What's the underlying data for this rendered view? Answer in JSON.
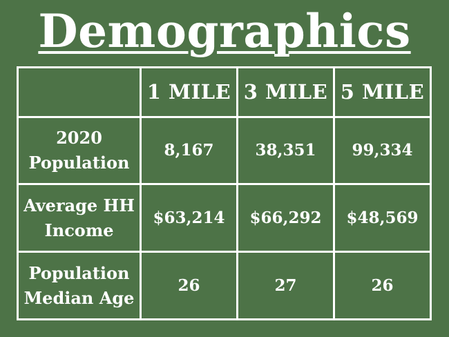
{
  "title": "Demographics",
  "table": {
    "columns": [
      "",
      "1 MILE",
      "3 MILE",
      "5 MILE"
    ],
    "rows": [
      {
        "label_line1": "2020",
        "label_line2": "Population",
        "values": [
          "8,167",
          "38,351",
          "99,334"
        ]
      },
      {
        "label_line1": "Average HH",
        "label_line2": "Income",
        "values": [
          "$63,214",
          "$66,292",
          "$48,569"
        ]
      },
      {
        "label_line1": "Population",
        "label_line2": "Median Age",
        "values": [
          "26",
          "27",
          "26"
        ]
      }
    ]
  },
  "colors": {
    "background": "#4d7347",
    "text": "#ffffff",
    "border": "#ffffff"
  }
}
